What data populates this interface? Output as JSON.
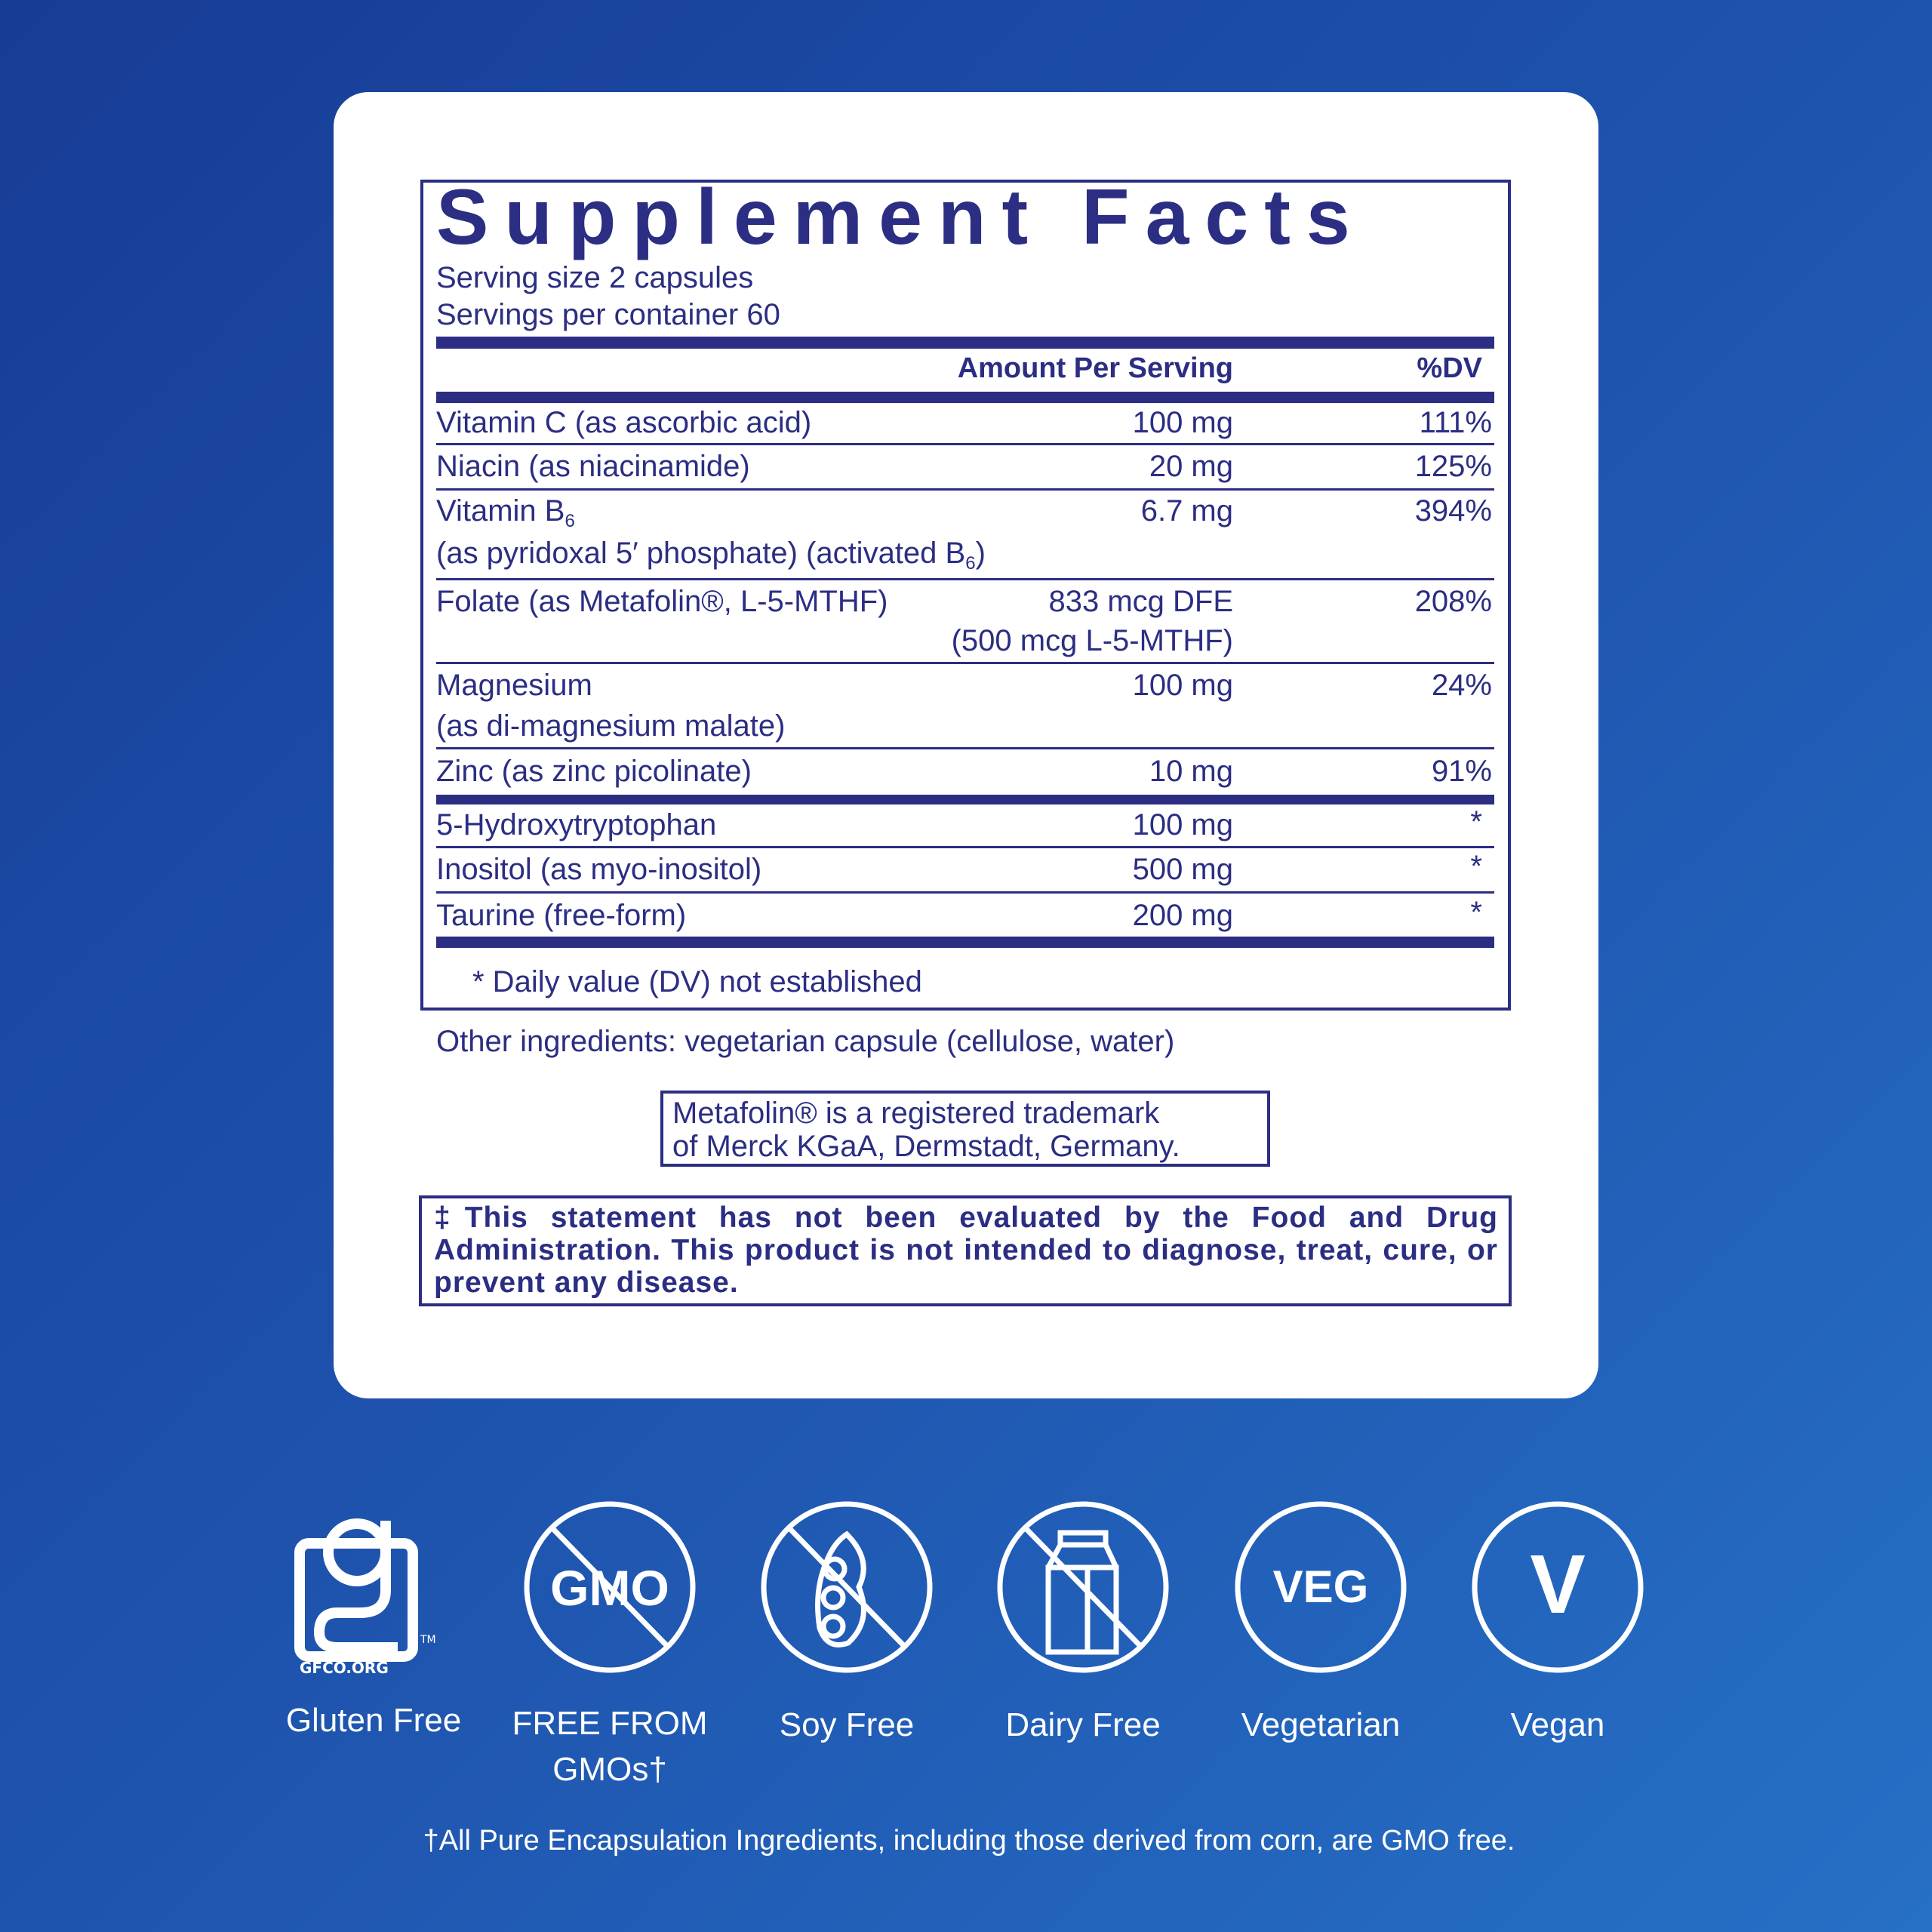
{
  "facts": {
    "title": "Supplement Facts",
    "serving_size": "Serving size  2 capsules",
    "servings_per_container": "Servings per container 60",
    "header_amount": "Amount Per Serving",
    "header_dv": "%DV",
    "rows": [
      {
        "name": "Vitamin C (as ascorbic acid)",
        "amount": "100 mg",
        "dv": "111%"
      },
      {
        "name": "Niacin (as niacinamide)",
        "amount": "20 mg",
        "dv": "125%"
      },
      {
        "name": "Vitamin B",
        "name_sub": "6",
        "name2": "(as pyridoxal 5′ phosphate) (activated B",
        "name2_sub": "6",
        "name2_end": ")",
        "amount": "6.7 mg",
        "dv": "394%"
      },
      {
        "name": "Folate (as Metafolin®, L-5-MTHF)",
        "amount": "833 mcg DFE",
        "amount2": "(500 mcg L-5-MTHF)",
        "dv": "208%"
      },
      {
        "name": "Magnesium",
        "name2": "(as di-magnesium malate)",
        "amount": "100 mg",
        "dv": "24%"
      },
      {
        "name": "Zinc (as zinc picolinate)",
        "amount": "10 mg",
        "dv": "91%"
      },
      {
        "name": "5-Hydroxytryptophan",
        "amount": "100 mg",
        "dv": "*"
      },
      {
        "name": "Inositol (as myo-inositol)",
        "amount": "500 mg",
        "dv": "*"
      },
      {
        "name": "Taurine (free-form)",
        "amount": "200 mg",
        "dv": "*"
      }
    ],
    "footnote": "* Daily value (DV) not established"
  },
  "other_ingredients": "Other ingredients: vegetarian capsule (cellulose, water)",
  "trademark": [
    "Metafolin® is a registered trademark",
    "of Merck KGaA, Dermstadt, Germany."
  ],
  "fda": "‡This statement has not been evaluated by the Food and Drug Administration. This product is not intended to diagnose, treat, cure, or prevent any disease.",
  "badges": [
    {
      "icon": "gluten-free-gfco-icon",
      "label": "Gluten Free",
      "logo_text": "GFCO.ORG"
    },
    {
      "icon": "no-gmo-icon",
      "label": "FREE FROM",
      "label2": "GMOs†",
      "icon_text": "GMO"
    },
    {
      "icon": "soy-free-icon",
      "label": "Soy Free"
    },
    {
      "icon": "dairy-free-icon",
      "label": "Dairy Free"
    },
    {
      "icon": "vegetarian-icon",
      "label": "Vegetarian",
      "icon_text": "VEG"
    },
    {
      "icon": "vegan-icon",
      "label": "Vegan",
      "icon_text": "V"
    }
  ],
  "footer_note": "†All Pure Encapsulation Ingredients, including those derived from corn, are GMO free.",
  "colors": {
    "navy": "#2b2e82",
    "bg_start": "#173c96",
    "bg_end": "#2670c6"
  }
}
